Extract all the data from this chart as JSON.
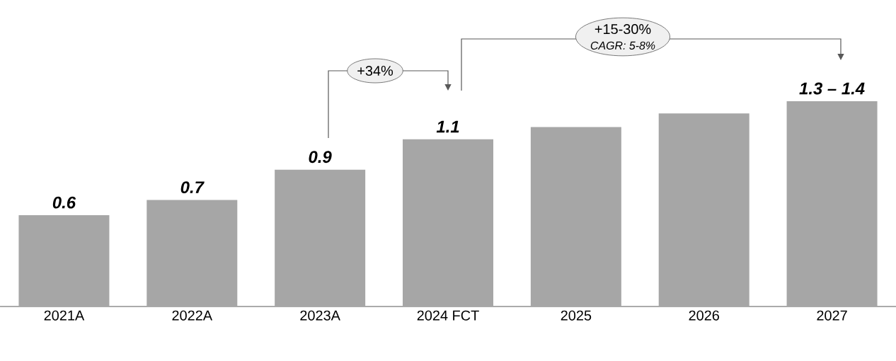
{
  "chart_data": {
    "type": "bar",
    "categories": [
      "2021A",
      "2022A",
      "2023A",
      "2024 FCT",
      "2025",
      "2026",
      "2027"
    ],
    "values": [
      0.6,
      0.7,
      0.9,
      1.1,
      1.18,
      1.27,
      1.35
    ],
    "color": "#a6a6a6",
    "value_labels": [
      "0.6",
      "0.7",
      "0.9",
      "1.1",
      null,
      null,
      "1.3 – 1.4"
    ],
    "annotations": [
      "+34%",
      "+15-30%",
      "CAGR: 5-8%"
    ]
  }
}
